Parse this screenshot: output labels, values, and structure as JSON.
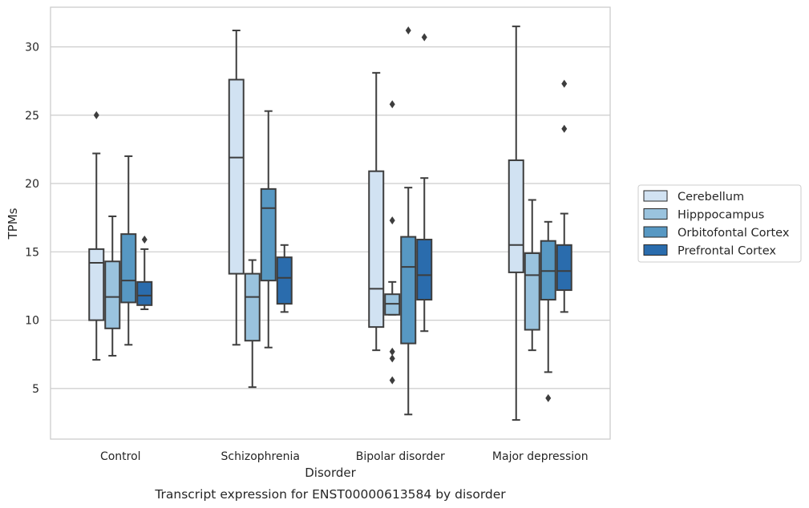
{
  "chart_data": {
    "type": "box",
    "title": "",
    "caption": "Transcript expression for ENST00000613584 by disorder",
    "xlabel": "Disorder",
    "ylabel": "TPMs",
    "ylim": [
      1.3,
      32.9
    ],
    "yticks": [
      5,
      10,
      15,
      20,
      25,
      30
    ],
    "grid": "horizontal",
    "legend_position": "right",
    "categories": [
      "Control",
      "Schizophrenia",
      "Bipolar disorder",
      "Major depression"
    ],
    "series": [
      {
        "name": "Cerebellum",
        "color": "#d1e2f2",
        "boxes": [
          {
            "whisker_low": 7.1,
            "q1": 10.0,
            "median": 14.2,
            "q3": 15.2,
            "whisker_high": 22.2,
            "outliers": [
              25.0
            ]
          },
          {
            "whisker_low": 8.2,
            "q1": 13.4,
            "median": 21.9,
            "q3": 27.6,
            "whisker_high": 31.2,
            "outliers": []
          },
          {
            "whisker_low": 7.8,
            "q1": 9.5,
            "median": 12.3,
            "q3": 20.9,
            "whisker_high": 28.1,
            "outliers": []
          },
          {
            "whisker_low": 2.7,
            "q1": 13.5,
            "median": 15.5,
            "q3": 21.7,
            "whisker_high": 31.5,
            "outliers": []
          }
        ]
      },
      {
        "name": "Hipppocampus",
        "color": "#9ac3de",
        "boxes": [
          {
            "whisker_low": 7.4,
            "q1": 9.4,
            "median": 11.7,
            "q3": 14.3,
            "whisker_high": 17.6,
            "outliers": []
          },
          {
            "whisker_low": 5.1,
            "q1": 8.5,
            "median": 11.7,
            "q3": 13.4,
            "whisker_high": 14.4,
            "outliers": []
          },
          {
            "whisker_low": 10.4,
            "q1": 10.4,
            "median": 11.2,
            "q3": 11.9,
            "whisker_high": 12.8,
            "outliers": [
              17.3,
              7.7,
              7.2,
              5.6,
              25.8
            ]
          },
          {
            "whisker_low": 7.8,
            "q1": 9.3,
            "median": 13.3,
            "q3": 14.9,
            "whisker_high": 18.8,
            "outliers": []
          }
        ]
      },
      {
        "name": "Orbitofontal Cortex",
        "color": "#5798c3",
        "boxes": [
          {
            "whisker_low": 8.2,
            "q1": 11.3,
            "median": 12.9,
            "q3": 16.3,
            "whisker_high": 22.0,
            "outliers": []
          },
          {
            "whisker_low": 8.0,
            "q1": 12.9,
            "median": 18.2,
            "q3": 19.6,
            "whisker_high": 25.3,
            "outliers": []
          },
          {
            "whisker_low": 3.1,
            "q1": 8.3,
            "median": 13.9,
            "q3": 16.1,
            "whisker_high": 19.7,
            "outliers": [
              31.2
            ]
          },
          {
            "whisker_low": 6.2,
            "q1": 11.5,
            "median": 13.6,
            "q3": 15.8,
            "whisker_high": 17.2,
            "outliers": [
              4.3
            ]
          }
        ]
      },
      {
        "name": "Prefrontal Cortex",
        "color": "#2a6cad",
        "boxes": [
          {
            "whisker_low": 10.8,
            "q1": 11.1,
            "median": 11.8,
            "q3": 12.8,
            "whisker_high": 15.2,
            "outliers": [
              15.9
            ]
          },
          {
            "whisker_low": 10.6,
            "q1": 11.2,
            "median": 13.1,
            "q3": 14.6,
            "whisker_high": 15.5,
            "outliers": []
          },
          {
            "whisker_low": 9.2,
            "q1": 11.5,
            "median": 13.3,
            "q3": 15.9,
            "whisker_high": 20.4,
            "outliers": [
              30.7
            ]
          },
          {
            "whisker_low": 10.6,
            "q1": 12.2,
            "median": 13.6,
            "q3": 15.5,
            "whisker_high": 17.8,
            "outliers": [
              27.3,
              24.0
            ]
          }
        ]
      }
    ]
  }
}
